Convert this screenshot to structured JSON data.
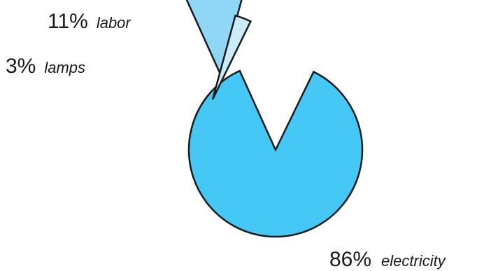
{
  "chart_data": {
    "type": "pie",
    "title": "",
    "slices": [
      {
        "label": "electricity",
        "value": 86,
        "value_text": "86%",
        "color": "#45c8f5"
      },
      {
        "label": "labor",
        "value": 11,
        "value_text": "11%",
        "color": "#8fd8f5"
      },
      {
        "label": "lamps",
        "value": 3,
        "value_text": "3%",
        "color": "#c9ecfb"
      }
    ],
    "exploded": true,
    "legend": "none"
  }
}
